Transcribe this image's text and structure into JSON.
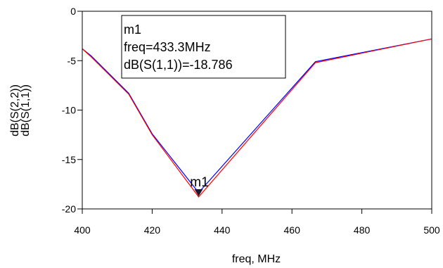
{
  "chart_data": {
    "type": "line",
    "xlabel": "freq, MHz",
    "xlim": [
      400,
      500
    ],
    "ylim": [
      -20,
      0
    ],
    "xticks": [
      "400",
      "420",
      "440",
      "460",
      "480",
      "500"
    ],
    "yticks": [
      "0",
      "-5",
      "-10",
      "-15",
      "-20"
    ],
    "grid": false,
    "series": [
      {
        "name": "dB(S(2,2))",
        "color": "#0000ff",
        "x": [
          400,
          402.5,
          413.3,
          420,
          433.3,
          466.7,
          500
        ],
        "y": [
          -3.8,
          -4.5,
          -8.3,
          -12.4,
          -18.35,
          -5.1,
          -2.8
        ]
      },
      {
        "name": "dB(S(1,1))",
        "color": "#ff0000",
        "x": [
          400,
          402.5,
          413.3,
          420,
          433.3,
          466.7,
          500
        ],
        "y": [
          -3.8,
          -4.6,
          -8.4,
          -12.5,
          -18.786,
          -5.2,
          -2.8
        ]
      }
    ],
    "marker": {
      "name": "m1",
      "x": 433.3,
      "y": -18.786,
      "lines": [
        "m1",
        "freq=433.3MHz",
        "dB(S(1,1))=-18.786"
      ]
    }
  }
}
